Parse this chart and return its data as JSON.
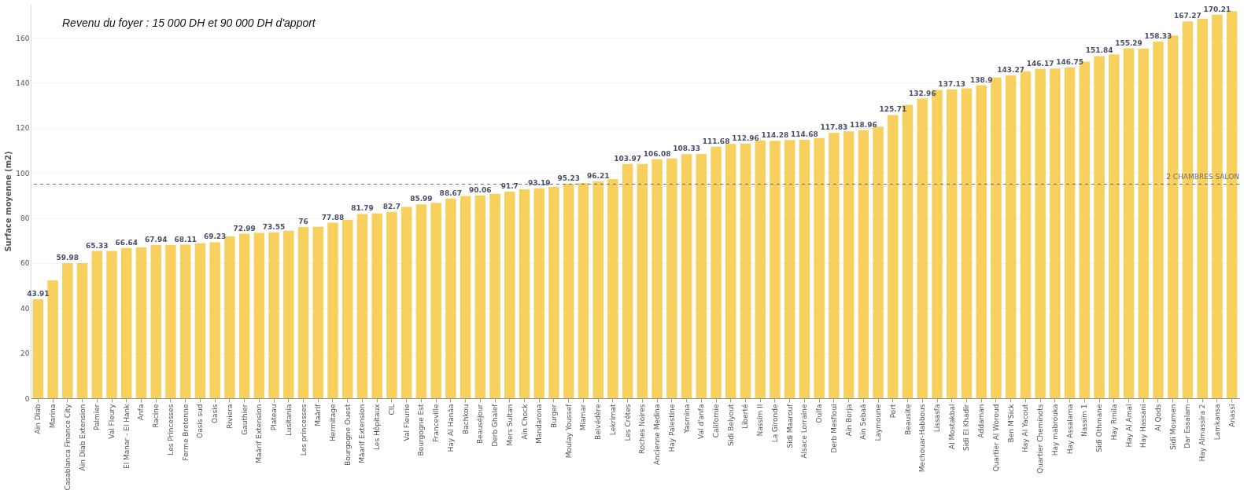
{
  "chart_data": {
    "type": "bar",
    "ylabel": "Surface moyenne (m2)",
    "annotations": [
      "Revenu du foyer : 15 000 DH et 90 000 DH d'apport"
    ],
    "categories": [
      "Aïn Diab",
      "Marina",
      "Casablanca Finance City",
      "Aïn Diab Extension",
      "Palmier",
      "Val Fleury",
      "El Manar - El Hank",
      "Anfa",
      "Racine",
      "Les Princesses",
      "Ferme Bretonne",
      "Oasis sud",
      "Oasis",
      "Riviera",
      "Gauthier",
      "Maârif Extension",
      "Plateau",
      "Lusitania",
      "Les princesses",
      "Maârif",
      "Hermitage",
      "Bourgogne Ouest",
      "Mâarif Extension",
      "Les Hôpitaux",
      "CIL",
      "Val Fleurie",
      "Bourgogne Est",
      "Franceville",
      "Hay Al Hanâa",
      "Bachkou",
      "Beauséjour",
      "Derb Ghalef",
      "Mers Sultan",
      "Aïn Chock",
      "Mandarona",
      "Burger",
      "Moulay Youssef",
      "Miamar",
      "Belvédère",
      "Lekrimat",
      "Les Crêtes",
      "Roches Noires",
      "Ancienne Medina",
      "Hay Palestine",
      "Yasmina",
      "Val d'anfa",
      "Californie",
      "Sidi Belyout",
      "Liberté",
      "Nassim II",
      "La Gironde",
      "Sidi Maarouf",
      "Alsace Lorraine",
      "Oulfa",
      "Derb Mesfioui",
      "Aïn Borja",
      "Aïn Sebaâ",
      "Laymoune",
      "Port",
      "Beausite",
      "Mechouar-Habbous",
      "Lissasfa",
      "Al Mostakbal",
      "Sidi El Khadir",
      "Addaman",
      "Quartier Al Woroud",
      "Ben M'Sick",
      "Hay Al Yacout",
      "Quartier Cheminots",
      "Hay mabrouka",
      "Hay Assalama",
      "Nassim 1",
      "Sidi Othmane",
      "Hay Rmila",
      "Hay Al Amal",
      "Hay Hassani",
      "Al Qods",
      "Sidi Moumen",
      "Dar Essalam",
      "Hay Almassira 2",
      "Lamkansa",
      "Anassi"
    ],
    "values": [
      43.91,
      52.3,
      59.98,
      60,
      65.33,
      65.4,
      66.64,
      66.9,
      67.94,
      68,
      68.11,
      68.8,
      69.23,
      71.8,
      72.99,
      73.4,
      73.55,
      74.3,
      76,
      76.1,
      77.88,
      79.1,
      81.79,
      82,
      82.7,
      84.9,
      85.99,
      86.7,
      88.67,
      89.8,
      90.06,
      90.7,
      91.7,
      92.7,
      93.19,
      93.8,
      95.23,
      95.5,
      96.21,
      97.3,
      103.97,
      104,
      106.08,
      106.4,
      108.33,
      108.4,
      111.68,
      112.9,
      112.96,
      114.3,
      114.28,
      114.6,
      114.68,
      115.5,
      117.83,
      118.4,
      118.96,
      120.5,
      125.71,
      130.2,
      132.96,
      136.8,
      137.13,
      137.5,
      138.9,
      142.3,
      143.27,
      145.1,
      146.17,
      146.3,
      146.75,
      149.4,
      151.84,
      152.6,
      155.29,
      155.2,
      158.33,
      161,
      167.27,
      168.4,
      170.21,
      171.8
    ],
    "value_labels": [
      "43.91",
      null,
      "59.98",
      null,
      "65.33",
      null,
      "66.64",
      null,
      "67.94",
      null,
      "68.11",
      null,
      "69.23",
      null,
      "72.99",
      null,
      "73.55",
      null,
      "76",
      null,
      "77.88",
      null,
      "81.79",
      null,
      "82.7",
      null,
      "85.99",
      null,
      "88.67",
      null,
      "90.06",
      null,
      "91.7",
      null,
      "93.19",
      null,
      "95.23",
      null,
      "96.21",
      null,
      "103.97",
      null,
      "106.08",
      null,
      "108.33",
      null,
      "111.68",
      null,
      "112.96",
      null,
      "114.28",
      null,
      "114.68",
      null,
      "117.83",
      null,
      "118.96",
      null,
      "125.71",
      null,
      "132.96",
      null,
      "137.13",
      null,
      "138.9",
      null,
      "143.27",
      null,
      "146.17",
      null,
      "146.75",
      null,
      "151.84",
      null,
      "155.29",
      null,
      "158.33",
      null,
      "167.27",
      null,
      "170.21",
      null
    ],
    "color": "#f7d05e",
    "ylim": [
      0,
      175
    ],
    "yticks": [
      0,
      20,
      40,
      60,
      80,
      100,
      120,
      140,
      160
    ],
    "grid": "y",
    "ref_lines": [
      {
        "axis": "y",
        "value": 95,
        "label": "2 CHAMBRES SALON",
        "color": "#6b6f7e",
        "line_style": "dashed"
      }
    ]
  }
}
